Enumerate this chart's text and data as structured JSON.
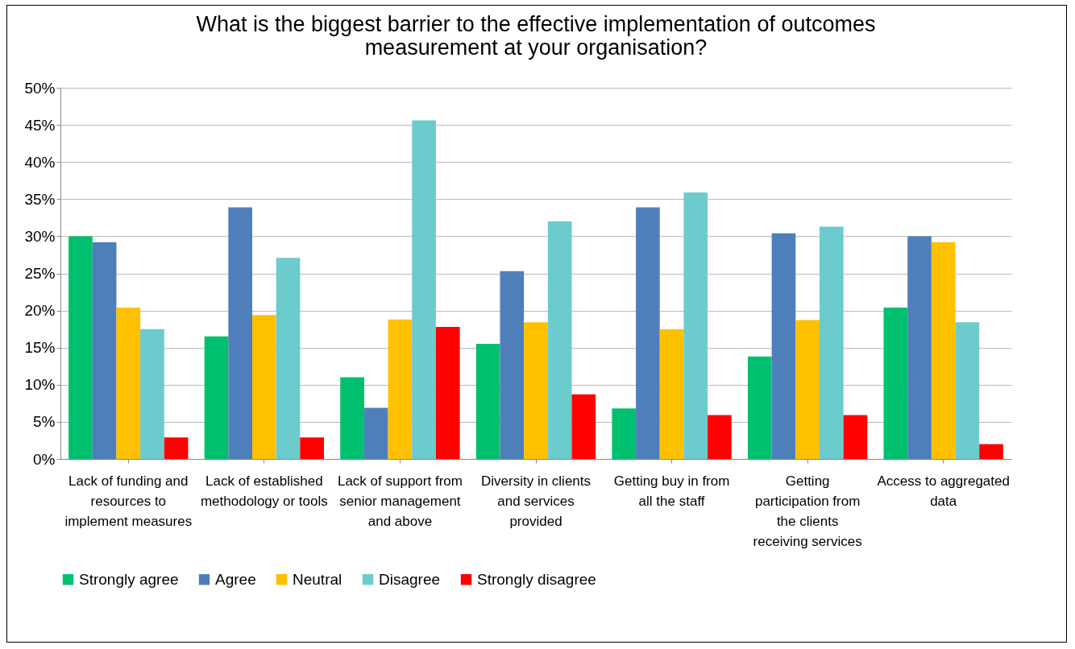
{
  "chart_data": {
    "type": "bar",
    "title": "What is the biggest barrier to the effective implementation of outcomes measurement at your organisation?",
    "categories": [
      "Lack of funding and resources to implement measures",
      "Lack of established methodology or tools",
      "Lack of support from senior management and above",
      "Diversity in clients and services provided",
      "Getting buy in from all the staff",
      "Getting participation from the clients receiving services",
      "Access to aggregated data"
    ],
    "series": [
      {
        "name": "Strongly agree",
        "color": "#00c06f",
        "values": [
          30.0,
          16.5,
          11.0,
          15.5,
          6.8,
          13.8,
          20.4
        ]
      },
      {
        "name": "Agree",
        "color": "#4f7fba",
        "values": [
          29.2,
          33.9,
          6.9,
          25.3,
          33.9,
          30.4,
          30.0
        ]
      },
      {
        "name": "Neutral",
        "color": "#ffc000",
        "values": [
          20.4,
          19.4,
          18.8,
          18.4,
          17.5,
          18.7,
          29.2
        ]
      },
      {
        "name": "Disagree",
        "color": "#6ccbcd",
        "values": [
          17.5,
          27.1,
          45.6,
          32.0,
          35.9,
          31.3,
          18.4
        ]
      },
      {
        "name": "Strongly disagree",
        "color": "#ff0000",
        "values": [
          2.9,
          2.9,
          17.8,
          8.7,
          5.9,
          5.9,
          2.0
        ]
      }
    ],
    "ylim": [
      0,
      50
    ],
    "yticks": [
      {
        "value": 0,
        "label": "0%"
      },
      {
        "value": 5,
        "label": "5%"
      },
      {
        "value": 10,
        "label": "10%"
      },
      {
        "value": 15,
        "label": "15%"
      },
      {
        "value": 20,
        "label": "20%"
      },
      {
        "value": 25,
        "label": "25%"
      },
      {
        "value": 30,
        "label": "30%"
      },
      {
        "value": 35,
        "label": "35%"
      },
      {
        "value": 40,
        "label": "40%"
      },
      {
        "value": 45,
        "label": "45%"
      },
      {
        "value": 50,
        "label": "50%"
      }
    ],
    "grid": "y",
    "legend": "bottom"
  }
}
